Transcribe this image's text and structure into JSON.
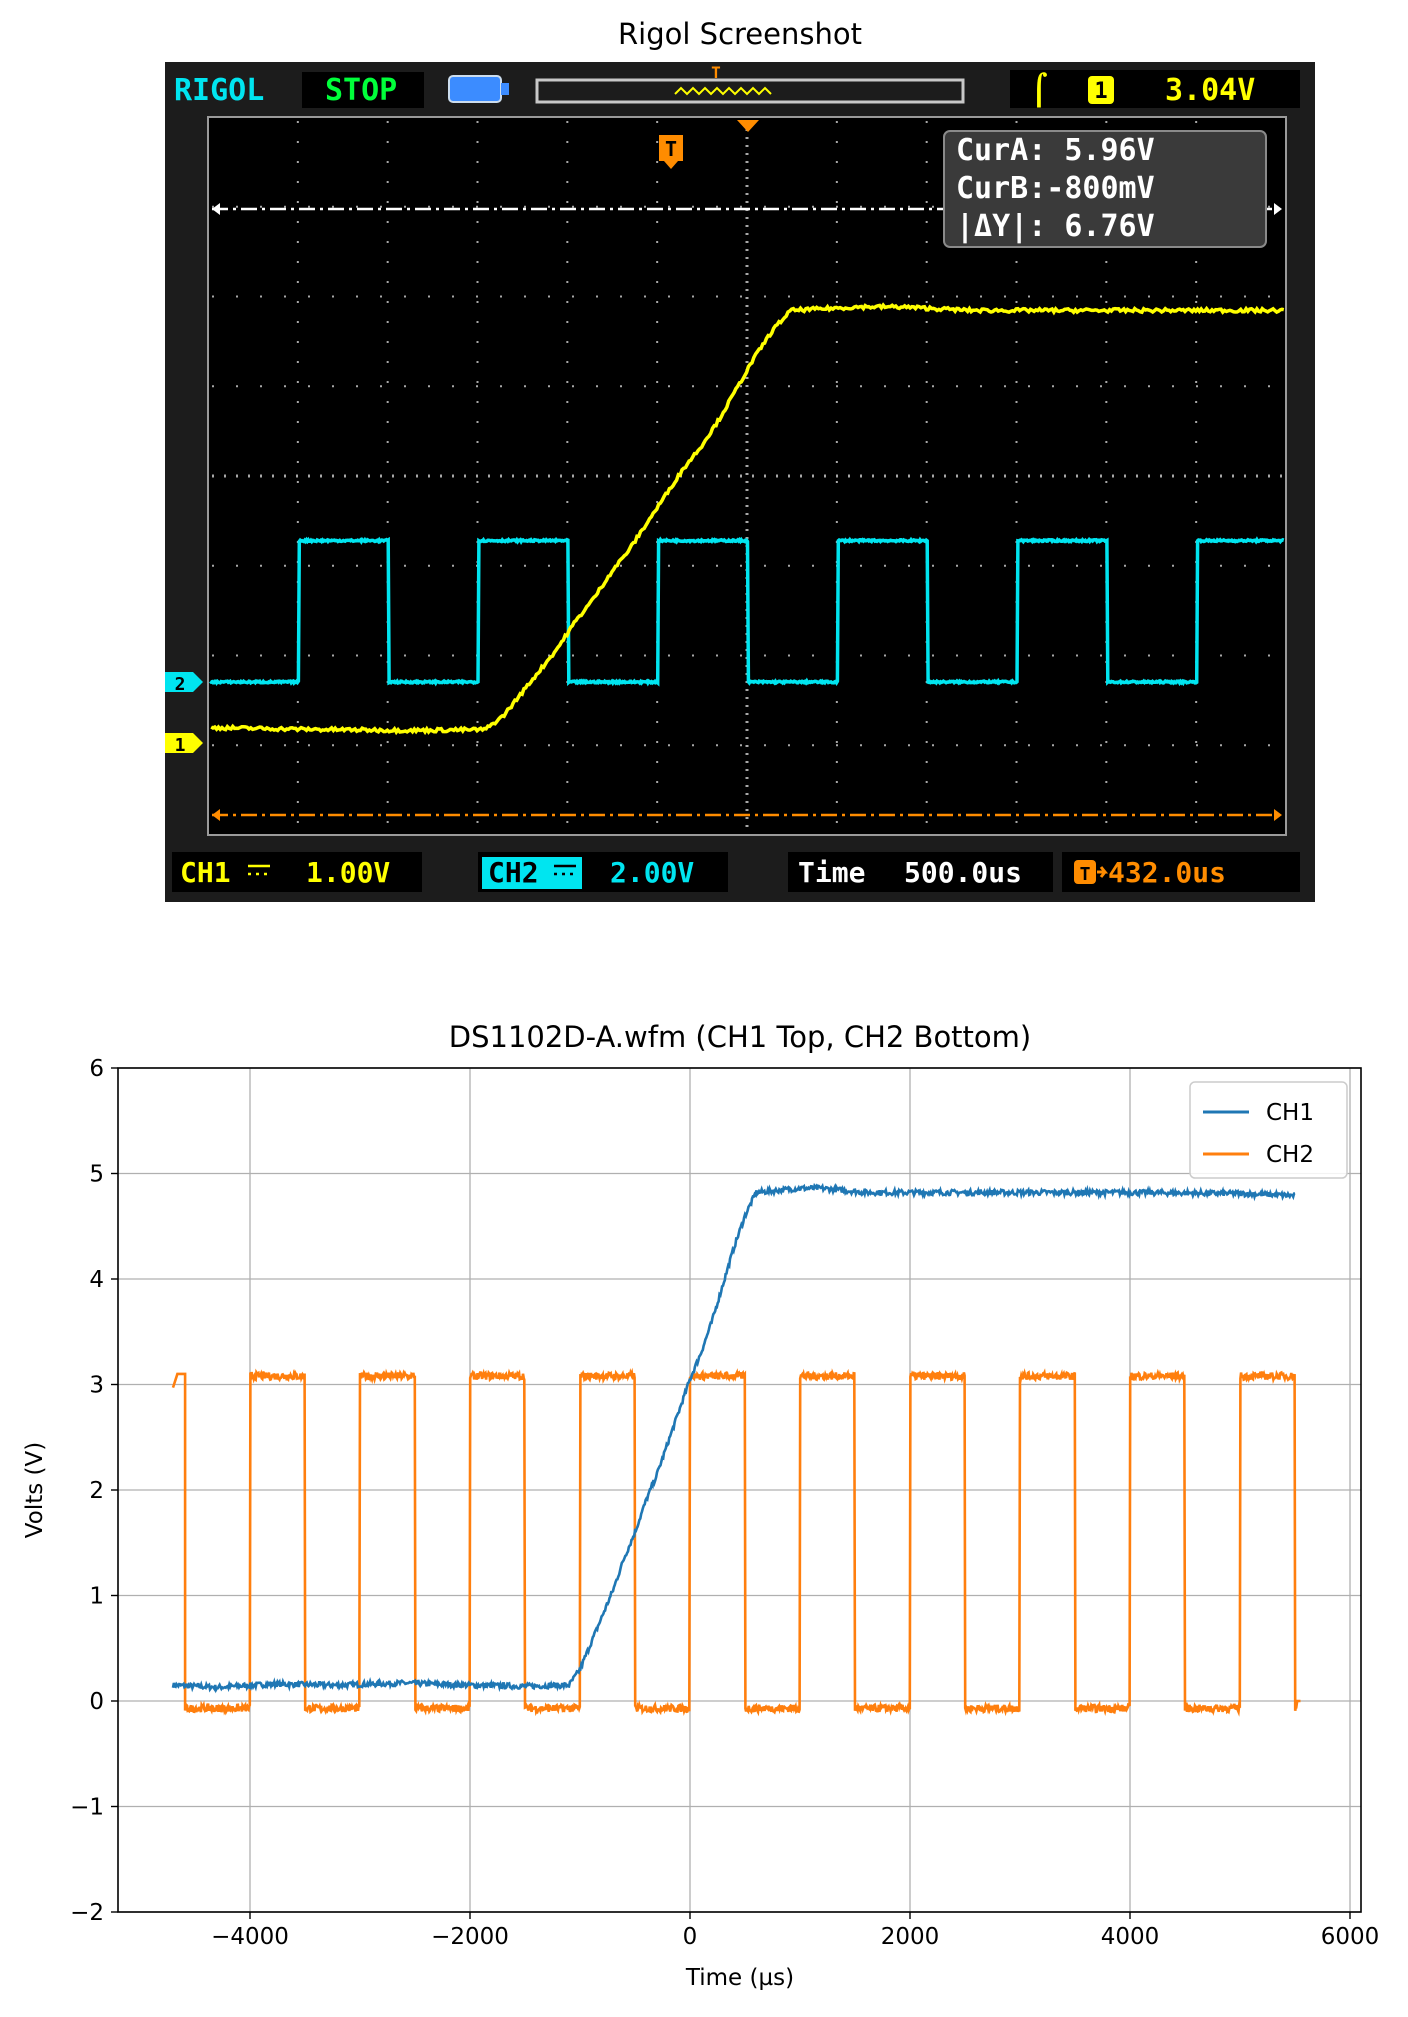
{
  "figure": {
    "top_title": "Rigol Screenshot",
    "bottom_title": "DS1102D-A.wfm (CH1 Top, CH2 Bottom)"
  },
  "scope": {
    "brand": "RIGOL",
    "run_state": "STOP",
    "trigger_symbol": "T",
    "trigger_slope_icon": "rising-edge-icon",
    "trigger_source": "1",
    "trigger_level": "3.04V",
    "cursor_a": "CurA: 5.96V",
    "cursor_b": "CurB:-800mV",
    "delta_y": "|ΔY|: 6.76V",
    "ch1_label": "CH1",
    "ch1_coupling_icon": "dc-coupling-icon",
    "ch1_scale": "1.00V",
    "ch2_label": "CH2",
    "ch2_scale": "2.00V",
    "time_label": "Time",
    "time_scale": "500.0us",
    "trigger_offset": "432.0us",
    "ch1_marker": "1",
    "ch2_marker": "2",
    "colors": {
      "ch1": "#ffff00",
      "ch2": "#00e5f0",
      "trigger": "#ff8c00",
      "grid": "#b0b0b0",
      "screen": "#000000"
    }
  },
  "chart_data": {
    "type": "line",
    "title": "DS1102D-A.wfm (CH1 Top, CH2 Bottom)",
    "xlabel": "Time (µs)",
    "ylabel": "Volts (V)",
    "xlim": [
      -5200,
      6100
    ],
    "ylim": [
      -2,
      6
    ],
    "xticks": [
      -4000,
      -2000,
      0,
      2000,
      4000,
      6000
    ],
    "xtick_labels": [
      "−4000",
      "−2000",
      "0",
      "2000",
      "4000",
      "6000"
    ],
    "yticks": [
      -2,
      -1,
      0,
      1,
      2,
      3,
      4,
      5,
      6
    ],
    "ytick_labels": [
      "−2",
      "−1",
      "0",
      "1",
      "2",
      "3",
      "4",
      "5",
      "6"
    ],
    "grid": true,
    "legend": "top-right",
    "series": [
      {
        "name": "CH1",
        "color": "#1f77b4",
        "x": [
          -4700,
          -4300,
          -3800,
          -3200,
          -2600,
          -2000,
          -1500,
          -1100,
          -1000,
          -900,
          -800,
          -700,
          -600,
          -500,
          -400,
          -300,
          -200,
          -100,
          0,
          100,
          200,
          300,
          400,
          500,
          600,
          800,
          1000,
          1200,
          1600,
          2000,
          3000,
          4000,
          5000,
          5500
        ],
        "y": [
          0.15,
          0.13,
          0.16,
          0.15,
          0.17,
          0.15,
          0.14,
          0.15,
          0.3,
          0.55,
          0.8,
          1.05,
          1.35,
          1.6,
          1.9,
          2.15,
          2.45,
          2.75,
          3.05,
          3.3,
          3.6,
          3.95,
          4.3,
          4.6,
          4.82,
          4.84,
          4.86,
          4.86,
          4.82,
          4.82,
          4.82,
          4.82,
          4.81,
          4.79
        ]
      },
      {
        "name": "CH2",
        "color": "#ff7f0e",
        "period": 1000,
        "high_start": -4000,
        "high_duration": 500,
        "high": 3.08,
        "low": -0.07,
        "x_range": [
          -4700,
          5550
        ],
        "x": [
          -4700,
          -4650,
          -4600,
          -4500,
          -4000,
          -3500,
          -3000,
          -2500,
          -2000,
          -1500,
          -1000,
          -500,
          0,
          500,
          1000,
          1500,
          2000,
          2500,
          3000,
          3500,
          4000,
          4500,
          5000,
          5500,
          5550
        ],
        "y": [
          2.97,
          3.1,
          3.1,
          -0.07,
          3.08,
          -0.07,
          3.08,
          -0.07,
          3.08,
          -0.07,
          3.08,
          -0.07,
          3.08,
          -0.07,
          3.08,
          -0.07,
          3.08,
          -0.07,
          3.08,
          -0.07,
          3.08,
          -0.07,
          3.08,
          -0.07,
          0.0
        ]
      }
    ]
  }
}
